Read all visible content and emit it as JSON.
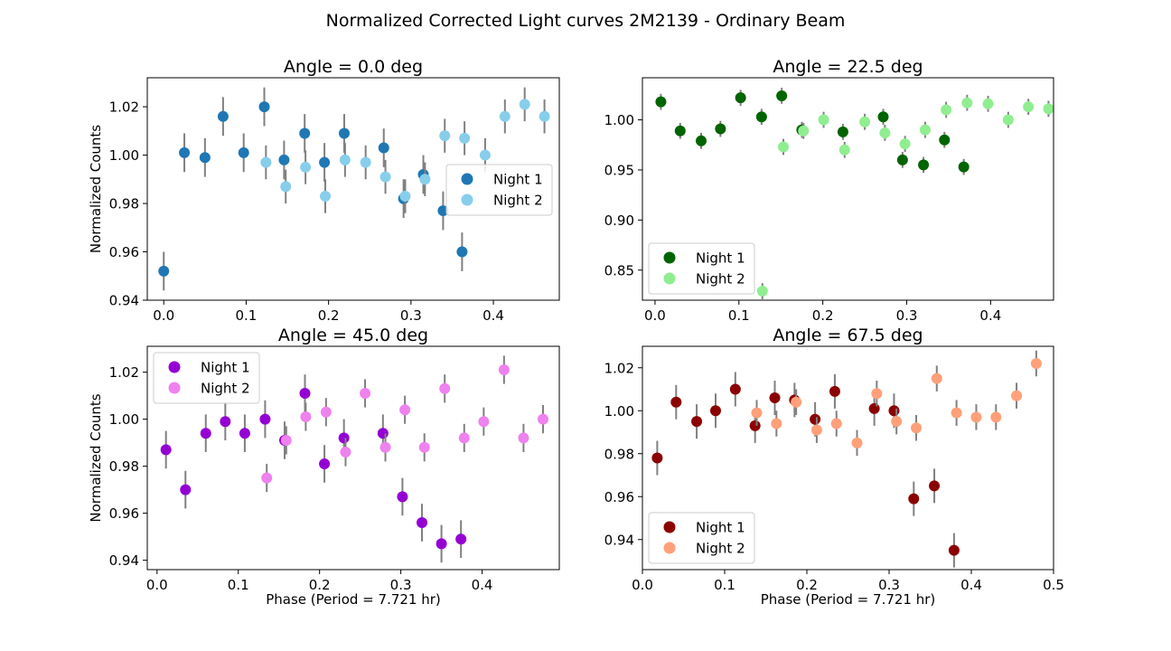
{
  "figure": {
    "suptitle": "Normalized Corrected Light curves 2M2139 - Ordinary Beam"
  },
  "colors": {
    "errorbar": "#808080"
  },
  "chart_data": [
    {
      "type": "scatter",
      "title": "Angle = 0.0 deg",
      "xlabel": "",
      "ylabel": "Normalized Counts",
      "xlim": [
        -0.02,
        0.48
      ],
      "ylim": [
        0.94,
        1.032
      ],
      "xticks": [
        "0.0",
        "0.1",
        "0.2",
        "0.3",
        "0.4"
      ],
      "xtick_values": [
        0.0,
        0.1,
        0.2,
        0.3,
        0.4
      ],
      "yticks": [
        "0.94",
        "0.96",
        "0.98",
        "1.00",
        "1.02"
      ],
      "ytick_values": [
        0.94,
        0.96,
        0.98,
        1.0,
        1.02
      ],
      "legend_position": "center-right",
      "series": [
        {
          "name": "Night 1",
          "color": "#1f77b4",
          "x": [
            0.0,
            0.025,
            0.05,
            0.072,
            0.097,
            0.122,
            0.146,
            0.171,
            0.195,
            0.219,
            0.267,
            0.291,
            0.315,
            0.339,
            0.362
          ],
          "y": [
            0.952,
            1.001,
            0.999,
            1.016,
            1.001,
            1.02,
            0.998,
            1.009,
            0.997,
            1.009,
            1.003,
            0.982,
            0.992,
            0.977,
            0.96
          ],
          "err": [
            0.008,
            0.008,
            0.008,
            0.008,
            0.008,
            0.008,
            0.008,
            0.008,
            0.008,
            0.008,
            0.008,
            0.008,
            0.008,
            0.008,
            0.008
          ]
        },
        {
          "name": "Night 2",
          "color": "#87ceeb",
          "x": [
            0.124,
            0.148,
            0.172,
            0.196,
            0.22,
            0.245,
            0.269,
            0.293,
            0.317,
            0.341,
            0.365,
            0.39,
            0.414,
            0.438,
            0.462
          ],
          "y": [
            0.997,
            0.987,
            0.995,
            0.983,
            0.998,
            0.997,
            0.991,
            0.983,
            0.99,
            1.008,
            1.007,
            1.0,
            1.016,
            1.021,
            1.016
          ],
          "err": [
            0.007,
            0.007,
            0.007,
            0.007,
            0.007,
            0.007,
            0.007,
            0.007,
            0.007,
            0.007,
            0.007,
            0.007,
            0.007,
            0.007,
            0.007
          ]
        }
      ]
    },
    {
      "type": "scatter",
      "title": "Angle = 22.5 deg",
      "xlabel": "",
      "ylabel": "",
      "xlim": [
        -0.015,
        0.475
      ],
      "ylim": [
        0.82,
        1.042
      ],
      "xticks": [
        "0.0",
        "0.1",
        "0.2",
        "0.3",
        "0.4"
      ],
      "xtick_values": [
        0.0,
        0.1,
        0.2,
        0.3,
        0.4
      ],
      "yticks": [
        "0.85",
        "0.90",
        "0.95",
        "1.00"
      ],
      "ytick_values": [
        0.85,
        0.9,
        0.95,
        1.0
      ],
      "legend_position": "lower-left",
      "series": [
        {
          "name": "Night 1",
          "color": "#006400",
          "x": [
            0.007,
            0.03,
            0.055,
            0.078,
            0.102,
            0.127,
            0.151,
            0.175,
            0.224,
            0.272,
            0.295,
            0.32,
            0.345,
            0.368
          ],
          "y": [
            1.018,
            0.989,
            0.979,
            0.991,
            1.022,
            1.003,
            1.024,
            0.99,
            0.988,
            1.003,
            0.96,
            0.955,
            0.98,
            0.953
          ],
          "err": [
            0.008,
            0.008,
            0.008,
            0.008,
            0.008,
            0.008,
            0.008,
            0.008,
            0.008,
            0.008,
            0.008,
            0.008,
            0.008,
            0.008
          ]
        },
        {
          "name": "Night 2",
          "color": "#90ee90",
          "x": [
            0.128,
            0.153,
            0.177,
            0.201,
            0.226,
            0.25,
            0.274,
            0.298,
            0.322,
            0.347,
            0.372,
            0.397,
            0.421,
            0.445,
            0.469
          ],
          "y": [
            0.829,
            0.973,
            0.989,
            1.0,
            0.97,
            0.998,
            0.987,
            0.976,
            0.99,
            1.01,
            1.017,
            1.016,
            1.0,
            1.013,
            1.011
          ],
          "err": [
            0.008,
            0.008,
            0.008,
            0.008,
            0.008,
            0.008,
            0.008,
            0.008,
            0.008,
            0.008,
            0.008,
            0.008,
            0.008,
            0.008,
            0.008
          ]
        }
      ]
    },
    {
      "type": "scatter",
      "title": "Angle = 45.0 deg",
      "xlabel": "Phase (Period = 7.721 hr)",
      "ylabel": "Normalized Counts",
      "xlim": [
        -0.012,
        0.495
      ],
      "ylim": [
        0.936,
        1.031
      ],
      "xticks": [
        "0.0",
        "0.1",
        "0.2",
        "0.3",
        "0.4"
      ],
      "xtick_values": [
        0.0,
        0.1,
        0.2,
        0.3,
        0.4
      ],
      "yticks": [
        "0.94",
        "0.96",
        "0.98",
        "1.00",
        "1.02"
      ],
      "ytick_values": [
        0.94,
        0.96,
        0.98,
        1.0,
        1.02
      ],
      "legend_position": "upper-left",
      "series": [
        {
          "name": "Night 1",
          "color": "#9400d3",
          "x": [
            0.011,
            0.035,
            0.06,
            0.084,
            0.108,
            0.133,
            0.157,
            0.182,
            0.206,
            0.23,
            0.278,
            0.302,
            0.326,
            0.35,
            0.374
          ],
          "y": [
            0.987,
            0.97,
            0.994,
            0.999,
            0.994,
            1.0,
            0.991,
            1.011,
            0.981,
            0.992,
            0.994,
            0.967,
            0.956,
            0.947,
            0.949
          ],
          "err": [
            0.008,
            0.008,
            0.008,
            0.008,
            0.008,
            0.008,
            0.008,
            0.008,
            0.008,
            0.008,
            0.008,
            0.008,
            0.008,
            0.008,
            0.008
          ]
        },
        {
          "name": "Night 2",
          "color": "#ee82ee",
          "x": [
            0.135,
            0.159,
            0.183,
            0.208,
            0.232,
            0.256,
            0.281,
            0.305,
            0.329,
            0.354,
            0.378,
            0.402,
            0.427,
            0.451,
            0.475
          ],
          "y": [
            0.975,
            0.991,
            1.001,
            1.003,
            0.986,
            1.011,
            0.988,
            1.004,
            0.988,
            1.013,
            0.992,
            0.999,
            1.021,
            0.992,
            1.0
          ],
          "err": [
            0.006,
            0.006,
            0.006,
            0.006,
            0.006,
            0.006,
            0.006,
            0.006,
            0.006,
            0.006,
            0.006,
            0.006,
            0.006,
            0.006,
            0.006
          ]
        }
      ]
    },
    {
      "type": "scatter",
      "title": "Angle = 67.5 deg",
      "xlabel": "Phase (Period = 7.721 hr)",
      "ylabel": "",
      "xlim": [
        0.0,
        0.5
      ],
      "ylim": [
        0.926,
        1.03
      ],
      "xticks": [
        "0.0",
        "0.1",
        "0.2",
        "0.3",
        "0.4",
        "0.5"
      ],
      "xtick_values": [
        0.0,
        0.1,
        0.2,
        0.3,
        0.4,
        0.5
      ],
      "yticks": [
        "0.94",
        "0.96",
        "0.98",
        "1.00",
        "1.02"
      ],
      "ytick_values": [
        0.94,
        0.96,
        0.98,
        1.0,
        1.02
      ],
      "legend_position": "lower-left",
      "series": [
        {
          "name": "Night 1",
          "color": "#8b0000",
          "x": [
            0.018,
            0.041,
            0.066,
            0.089,
            0.113,
            0.137,
            0.161,
            0.185,
            0.21,
            0.234,
            0.282,
            0.306,
            0.33,
            0.355,
            0.379
          ],
          "y": [
            0.978,
            1.004,
            0.995,
            1.0,
            1.01,
            0.993,
            1.006,
            1.005,
            0.996,
            1.009,
            1.001,
            1.0,
            0.959,
            0.965,
            0.935
          ],
          "err": [
            0.008,
            0.008,
            0.008,
            0.008,
            0.008,
            0.008,
            0.008,
            0.008,
            0.008,
            0.008,
            0.008,
            0.008,
            0.008,
            0.008,
            0.008
          ]
        },
        {
          "name": "Night 2",
          "color": "#ffa07a",
          "x": [
            0.139,
            0.163,
            0.187,
            0.212,
            0.236,
            0.261,
            0.285,
            0.309,
            0.333,
            0.358,
            0.382,
            0.406,
            0.43,
            0.455,
            0.479
          ],
          "y": [
            0.999,
            0.994,
            1.004,
            0.991,
            0.994,
            0.985,
            1.008,
            0.995,
            0.992,
            1.015,
            0.999,
            0.997,
            0.997,
            1.007,
            1.022
          ],
          "err": [
            0.006,
            0.006,
            0.006,
            0.006,
            0.006,
            0.006,
            0.006,
            0.006,
            0.006,
            0.006,
            0.006,
            0.006,
            0.006,
            0.006,
            0.006
          ]
        }
      ]
    }
  ]
}
